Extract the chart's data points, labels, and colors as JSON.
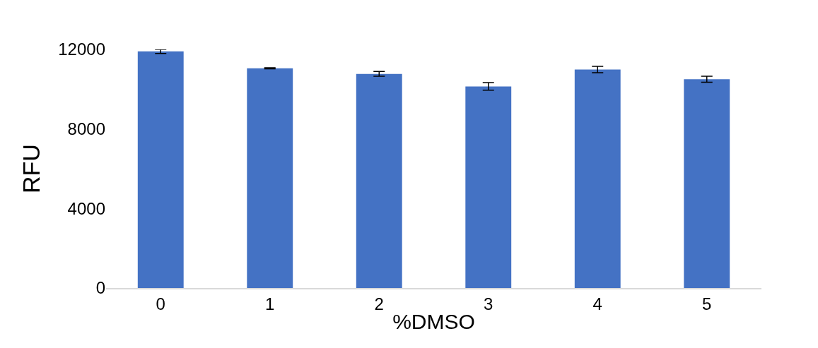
{
  "chart_data": {
    "type": "bar",
    "xlabel": "%DMSO",
    "ylabel": "RFU",
    "categories": [
      "0",
      "1",
      "2",
      "3",
      "4",
      "5"
    ],
    "values": [
      11900,
      11050,
      10770,
      10140,
      10990,
      10500
    ],
    "errors": [
      100,
      30,
      120,
      190,
      160,
      150
    ],
    "color": "#4472c4",
    "ylim": [
      0,
      12000
    ],
    "yticks": [
      0,
      4000,
      8000,
      12000
    ],
    "grid": false
  }
}
